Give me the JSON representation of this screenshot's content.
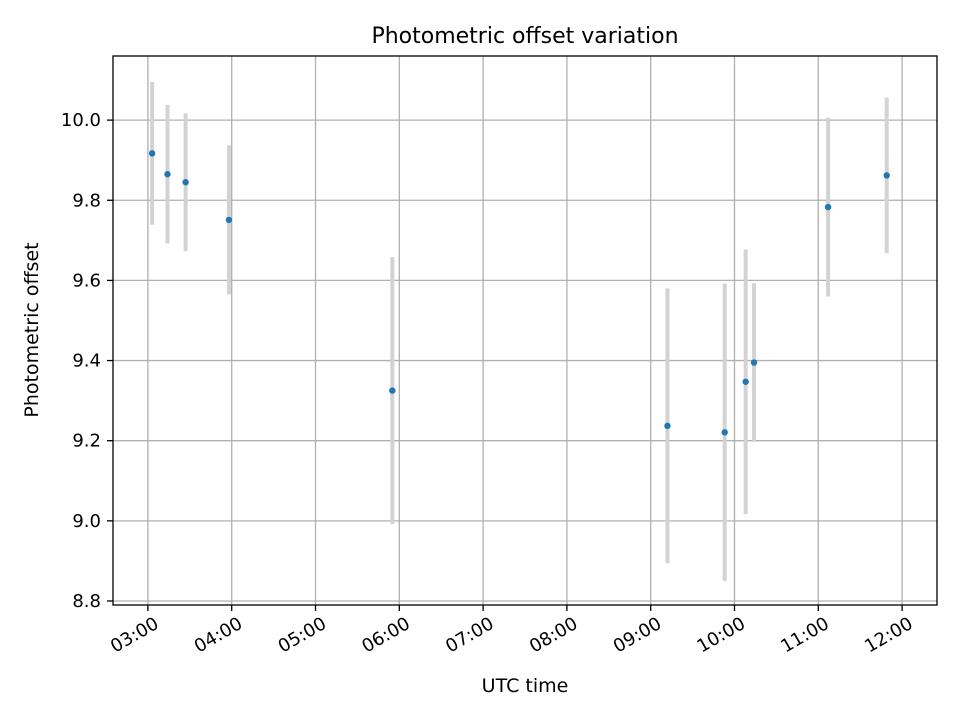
{
  "chart_data": {
    "type": "scatter",
    "title": "Photometric offset variation",
    "xlabel": "UTC time",
    "ylabel": "Photometric offset",
    "xlim": [
      "02:35",
      "12:25"
    ],
    "ylim": [
      8.79,
      10.16
    ],
    "x_ticks": [
      "03:00",
      "04:00",
      "05:00",
      "06:00",
      "07:00",
      "08:00",
      "09:00",
      "10:00",
      "11:00",
      "12:00"
    ],
    "y_ticks": [
      "8.8",
      "9.0",
      "9.2",
      "9.4",
      "9.6",
      "9.8",
      "10.0"
    ],
    "grid": true,
    "points": [
      {
        "time": "03:03",
        "value": 9.917,
        "error": 0.178
      },
      {
        "time": "03:14",
        "value": 9.865,
        "error": 0.173
      },
      {
        "time": "03:27",
        "value": 9.845,
        "error": 0.172
      },
      {
        "time": "03:58",
        "value": 9.751,
        "error": 0.186
      },
      {
        "time": "05:55",
        "value": 9.325,
        "error": 0.333
      },
      {
        "time": "09:12",
        "value": 9.237,
        "error": 0.343
      },
      {
        "time": "09:53",
        "value": 9.221,
        "error": 0.371
      },
      {
        "time": "10:08",
        "value": 9.347,
        "error": 0.33
      },
      {
        "time": "10:14",
        "value": 9.395,
        "error": 0.198
      },
      {
        "time": "11:07",
        "value": 9.783,
        "error": 0.223
      },
      {
        "time": "11:49",
        "value": 9.862,
        "error": 0.194
      }
    ],
    "colors": {
      "marker": "#1f77b4",
      "errorbar": "#d3d3d3"
    }
  }
}
